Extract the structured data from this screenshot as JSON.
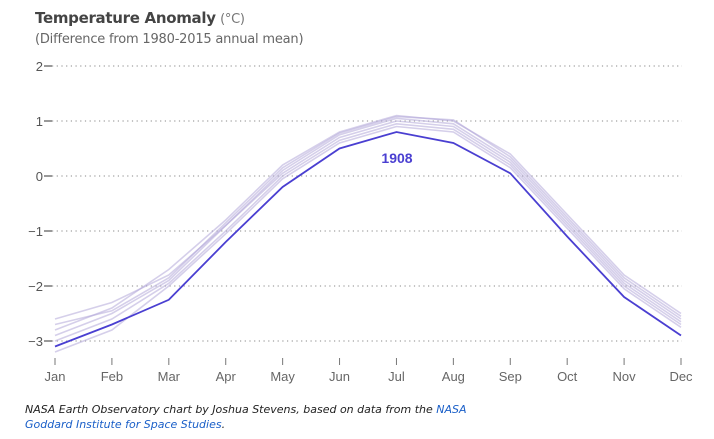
{
  "chart_data": {
    "type": "line",
    "title": "Temperature Anomaly",
    "title_unit": "(°C)",
    "subtitle": "(Difference from 1980-2015 annual mean)",
    "xlabel": "",
    "ylabel": "",
    "categories": [
      "Jan",
      "Feb",
      "Mar",
      "Apr",
      "May",
      "Jun",
      "Jul",
      "Aug",
      "Sep",
      "Oct",
      "Nov",
      "Dec"
    ],
    "y_ticks": [
      "2",
      "1",
      "0",
      "−1",
      "−2",
      "−3"
    ],
    "ylim": [
      -3.2,
      2
    ],
    "grid": "horizontal dotted",
    "highlight_series": {
      "name": "1908",
      "color": "#4a3fd1",
      "values": [
        -3.1,
        -2.7,
        -2.25,
        -1.2,
        -0.2,
        0.5,
        0.8,
        0.6,
        0.05,
        -1.1,
        -2.2,
        -2.9
      ]
    },
    "background_series_color": "#b3a8d8",
    "background_series": [
      {
        "values": [
          -2.9,
          -2.5,
          -1.9,
          -0.9,
          0.1,
          0.75,
          1.05,
          0.95,
          0.3,
          -0.8,
          -1.9,
          -2.6
        ]
      },
      {
        "values": [
          -2.8,
          -2.4,
          -1.7,
          -0.8,
          0.2,
          0.8,
          1.1,
          1.0,
          0.4,
          -0.7,
          -1.8,
          -2.5
        ]
      },
      {
        "values": [
          -3.0,
          -2.6,
          -1.95,
          -1.0,
          0.0,
          0.65,
          0.95,
          0.85,
          0.2,
          -0.9,
          -2.0,
          -2.7
        ]
      },
      {
        "values": [
          -2.6,
          -2.3,
          -1.8,
          -0.9,
          0.05,
          0.7,
          1.0,
          0.9,
          0.25,
          -0.85,
          -1.95,
          -2.65
        ]
      },
      {
        "values": [
          -3.2,
          -2.8,
          -2.0,
          -1.05,
          -0.05,
          0.6,
          0.9,
          0.8,
          0.15,
          -0.95,
          -2.05,
          -2.75
        ]
      },
      {
        "values": [
          -2.7,
          -2.45,
          -1.85,
          -0.85,
          0.15,
          0.78,
          1.08,
          1.02,
          0.35,
          -0.75,
          -1.85,
          -2.55
        ]
      }
    ]
  },
  "footer": {
    "text": "NASA Earth Observatory chart by Joshua Stevens, based on data from the ",
    "link": "NASA Goddard Institute for Space Studies",
    "end": "."
  }
}
